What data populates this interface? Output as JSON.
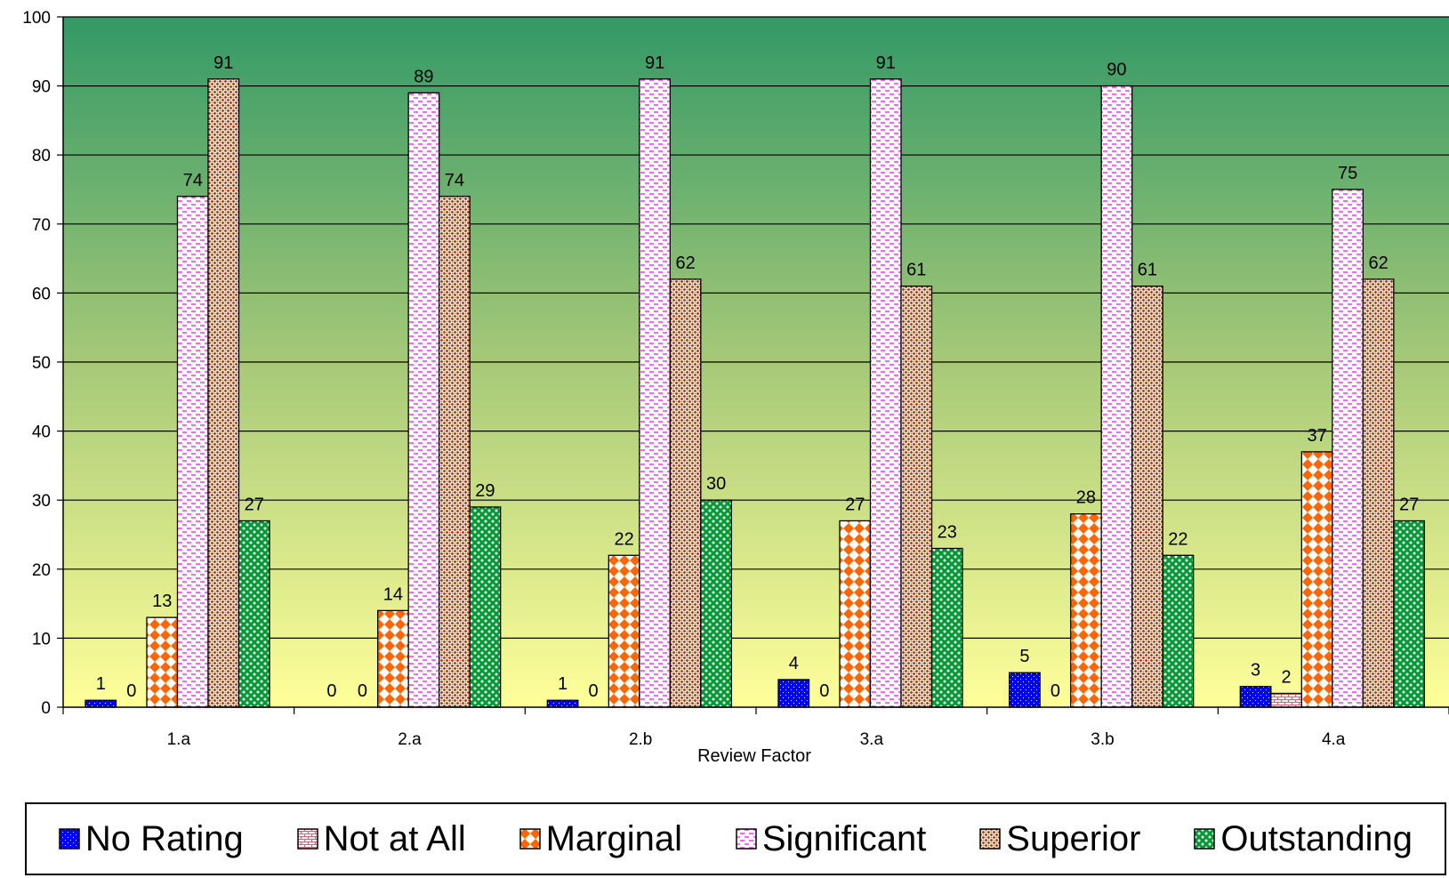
{
  "chart_data": {
    "type": "bar",
    "title": "",
    "xlabel": "Review Factor",
    "ylabel": "",
    "ylim": [
      0,
      100
    ],
    "yticks": [
      0,
      10,
      20,
      30,
      40,
      50,
      60,
      70,
      80,
      90,
      100
    ],
    "grid": true,
    "legend_position": "bottom",
    "background": "gradient green (top) to yellow (bottom)",
    "categories": [
      "1.a",
      "2.a",
      "2.b",
      "3.a",
      "3.b",
      "4.a"
    ],
    "series": [
      {
        "name": "No Rating",
        "values": [
          1,
          0,
          1,
          4,
          5,
          3
        ],
        "color": "#0000ff",
        "labels": [
          "1",
          "0",
          "1",
          "4",
          "5",
          "3"
        ]
      },
      {
        "name": "Not at All",
        "values": [
          0,
          0,
          0,
          0,
          0,
          2
        ],
        "color": "#ff9999",
        "labels": [
          "0",
          "0",
          "0",
          "0",
          "0",
          "2"
        ]
      },
      {
        "name": "Marginal",
        "values": [
          13,
          14,
          22,
          27,
          28,
          37
        ],
        "color": "#ff6600",
        "labels": [
          "13",
          "14",
          "22",
          "27",
          "28",
          "37"
        ]
      },
      {
        "name": "Significant",
        "values": [
          74,
          89,
          91,
          91,
          90,
          75
        ],
        "color": "#ff66ff",
        "labels": [
          "74",
          "89",
          "91",
          "91",
          "90",
          "75"
        ]
      },
      {
        "name": "Superior",
        "values": [
          91,
          74,
          62,
          61,
          61,
          62
        ],
        "color": "#993300",
        "labels": [
          "91",
          "74",
          "62",
          "61",
          "61",
          "62"
        ]
      },
      {
        "name": "Outstanding",
        "values": [
          27,
          29,
          30,
          23,
          22,
          27
        ],
        "color": "#009933",
        "labels": [
          "27",
          "29",
          "30",
          "23",
          "22",
          "27"
        ]
      }
    ]
  }
}
